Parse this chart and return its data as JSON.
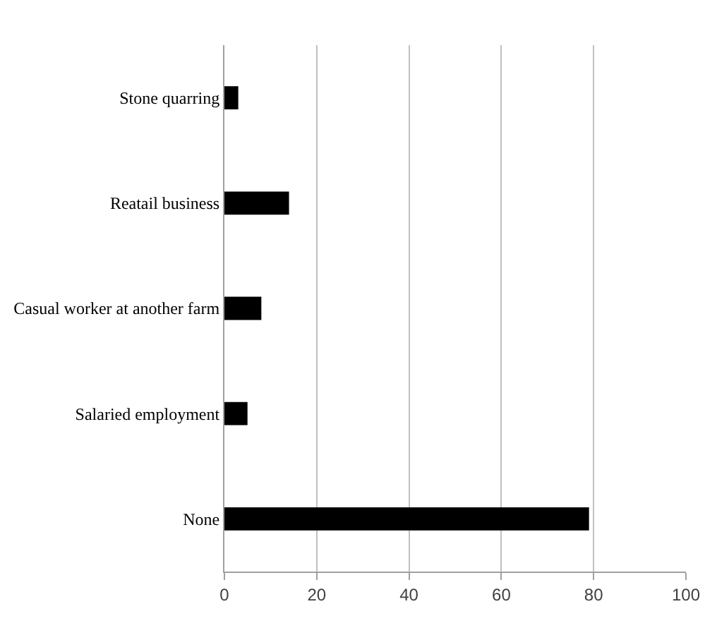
{
  "chart_data": {
    "type": "bar",
    "orientation": "horizontal",
    "categories": [
      "Stone quarring",
      "Reatail business",
      "Casual worker at another farm",
      "Salaried employment",
      "None"
    ],
    "values": [
      3,
      14,
      8,
      5,
      79
    ],
    "color": "#000000",
    "xlim": [
      0,
      100
    ],
    "xticks": [
      0,
      20,
      40,
      60,
      80,
      100
    ],
    "grid": "x"
  }
}
